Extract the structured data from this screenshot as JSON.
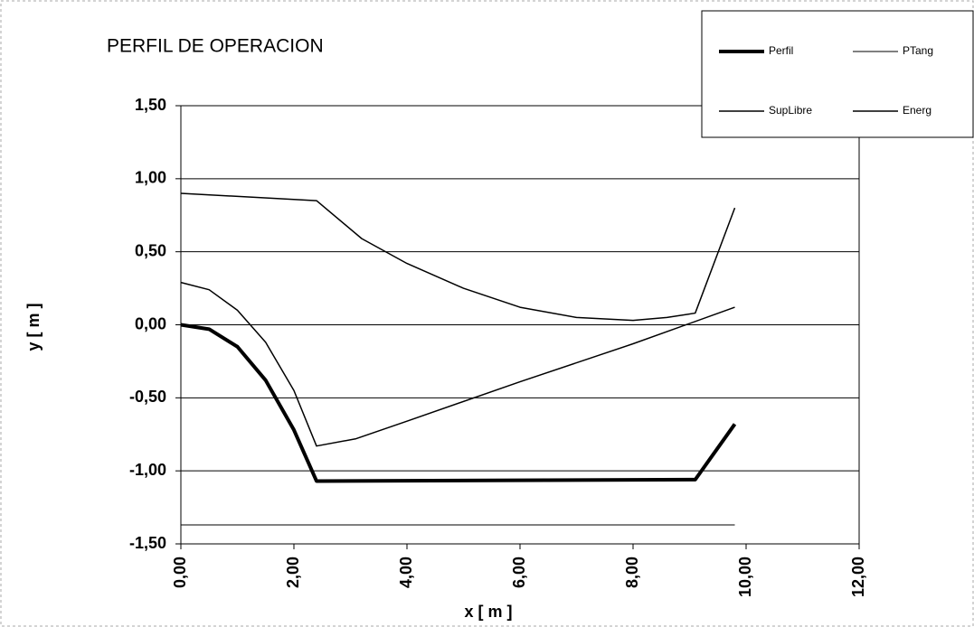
{
  "chart_data": {
    "type": "line",
    "title": "PERFIL DE OPERACION",
    "x_label": "x [ m ]",
    "y_label": "y [ m ]",
    "xlim": [
      0,
      12
    ],
    "ylim": [
      -1.5,
      1.5
    ],
    "xticks": [
      {
        "value": 0,
        "label": "0,00"
      },
      {
        "value": 2,
        "label": "2,00"
      },
      {
        "value": 4,
        "label": "4,00"
      },
      {
        "value": 6,
        "label": "6,00"
      },
      {
        "value": 8,
        "label": "8,00"
      },
      {
        "value": 10,
        "label": "10,00"
      },
      {
        "value": 12,
        "label": "12,00"
      }
    ],
    "yticks": [
      {
        "value": -1.5,
        "label": "-1,50"
      },
      {
        "value": -1,
        "label": "-1,00"
      },
      {
        "value": -0.5,
        "label": "-0,50"
      },
      {
        "value": 0,
        "label": "0,00"
      },
      {
        "value": 0.5,
        "label": "0,50"
      },
      {
        "value": 1,
        "label": "1,00"
      },
      {
        "value": 1.5,
        "label": "1,50"
      }
    ],
    "grid": true,
    "legend": "top-right",
    "series": [
      {
        "name": "Perfil",
        "color": "#000000",
        "width": 4,
        "x": [
          0,
          0.5,
          1.0,
          1.5,
          2.0,
          2.4,
          9.1,
          9.8
        ],
        "values": [
          0,
          -0.03,
          -0.15,
          -0.38,
          -0.72,
          -1.07,
          -1.06,
          -0.68
        ]
      },
      {
        "name": "PTang",
        "color": "#000000",
        "width": 1,
        "x": [
          0,
          9.8
        ],
        "values": [
          -1.37,
          -1.37
        ]
      },
      {
        "name": "SupLibre",
        "color": "#000000",
        "width": 1.5,
        "x": [
          0,
          0.5,
          1.0,
          1.5,
          2.0,
          2.4,
          3.1,
          4.0,
          6.0,
          8.0,
          9.8
        ],
        "values": [
          0.29,
          0.24,
          0.1,
          -0.12,
          -0.45,
          -0.83,
          -0.78,
          -0.66,
          -0.39,
          -0.13,
          0.12
        ]
      },
      {
        "name": "Energ",
        "color": "#000000",
        "width": 1.5,
        "x": [
          0,
          2.4,
          3.2,
          4.0,
          5.0,
          6.0,
          7.0,
          8.0,
          8.6,
          9.1,
          9.8
        ],
        "values": [
          0.9,
          0.85,
          0.59,
          0.42,
          0.25,
          0.12,
          0.05,
          0.03,
          0.05,
          0.08,
          0.8
        ]
      }
    ]
  }
}
